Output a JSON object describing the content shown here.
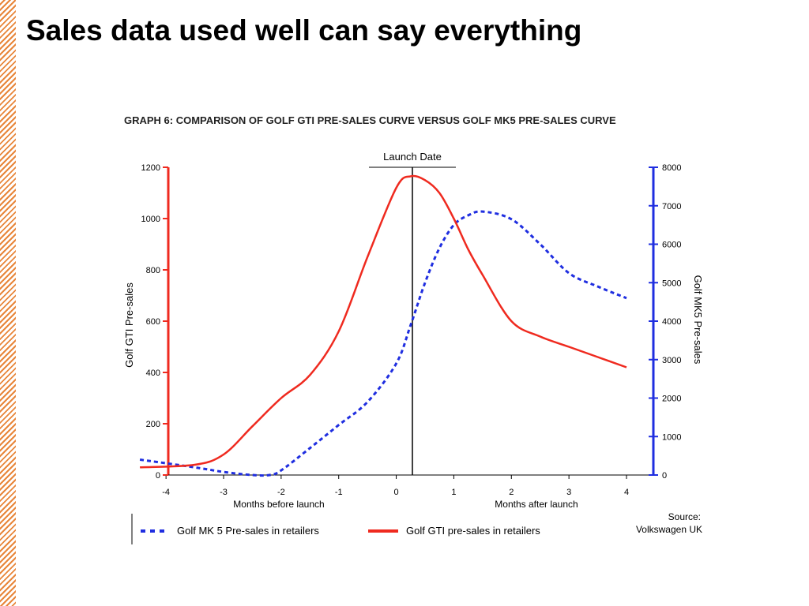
{
  "slide": {
    "title": "Sales data used well can say everything"
  },
  "colors": {
    "gti": "#ef2a1f",
    "mk5": "#1f2ee0",
    "stripe": "#e8863a"
  },
  "chart_data": {
    "type": "line",
    "title": "GRAPH 6: COMPARISON OF GOLF GTI PRE-SALES CURVE VERSUS GOLF MK5 PRE-SALES CURVE",
    "annotation": "Launch Date",
    "x_ticks": [
      "-4",
      "-3",
      "-2",
      "-1",
      "0",
      "1",
      "2",
      "3",
      "4"
    ],
    "x_labels": [
      "Months before launch",
      "Months after launch"
    ],
    "xlim": [
      -4,
      4
    ],
    "y_left": {
      "label": "Golf GTI Pre-sales",
      "ticks": [
        "0",
        "200",
        "400",
        "600",
        "800",
        "1000",
        "1200"
      ],
      "ylim": [
        0,
        1200
      ]
    },
    "y_right": {
      "label": "Golf  MK5 Pre-sales",
      "ticks": [
        "0",
        "1000",
        "2000",
        "3000",
        "4000",
        "5000",
        "6000",
        "7000",
        "8000"
      ],
      "ylim": [
        0,
        8000
      ]
    },
    "series": [
      {
        "name": "Golf MK 5 Pre-sales in retailers",
        "axis": "right",
        "style": "dashed",
        "x": [
          -4,
          -3.5,
          -3,
          -2.5,
          -2.2,
          -2,
          -1.5,
          -1,
          -0.5,
          0,
          0.25,
          0.5,
          0.75,
          1,
          1.25,
          1.5,
          2,
          2.5,
          3,
          3.5,
          4
        ],
        "y": [
          400,
          200,
          80,
          0,
          0,
          120,
          700,
          1300,
          1900,
          2900,
          3900,
          5000,
          5900,
          6500,
          6750,
          6850,
          6650,
          6000,
          5250,
          4900,
          4600
        ]
      },
      {
        "name": "Golf GTI pre-sales in retailers",
        "axis": "left",
        "style": "solid",
        "x": [
          -4,
          -3.5,
          -3,
          -2.5,
          -2,
          -1.5,
          -1,
          -0.5,
          0,
          0.25,
          0.5,
          0.75,
          1,
          1.25,
          1.5,
          2,
          2.5,
          3,
          3.5,
          4
        ],
        "y": [
          30,
          40,
          80,
          190,
          300,
          390,
          560,
          850,
          1120,
          1165,
          1150,
          1100,
          1000,
          880,
          780,
          600,
          540,
          500,
          460,
          420
        ]
      }
    ],
    "source": [
      "Source:",
      "Volkswagen UK"
    ],
    "grid": false,
    "legend_position": "bottom"
  }
}
